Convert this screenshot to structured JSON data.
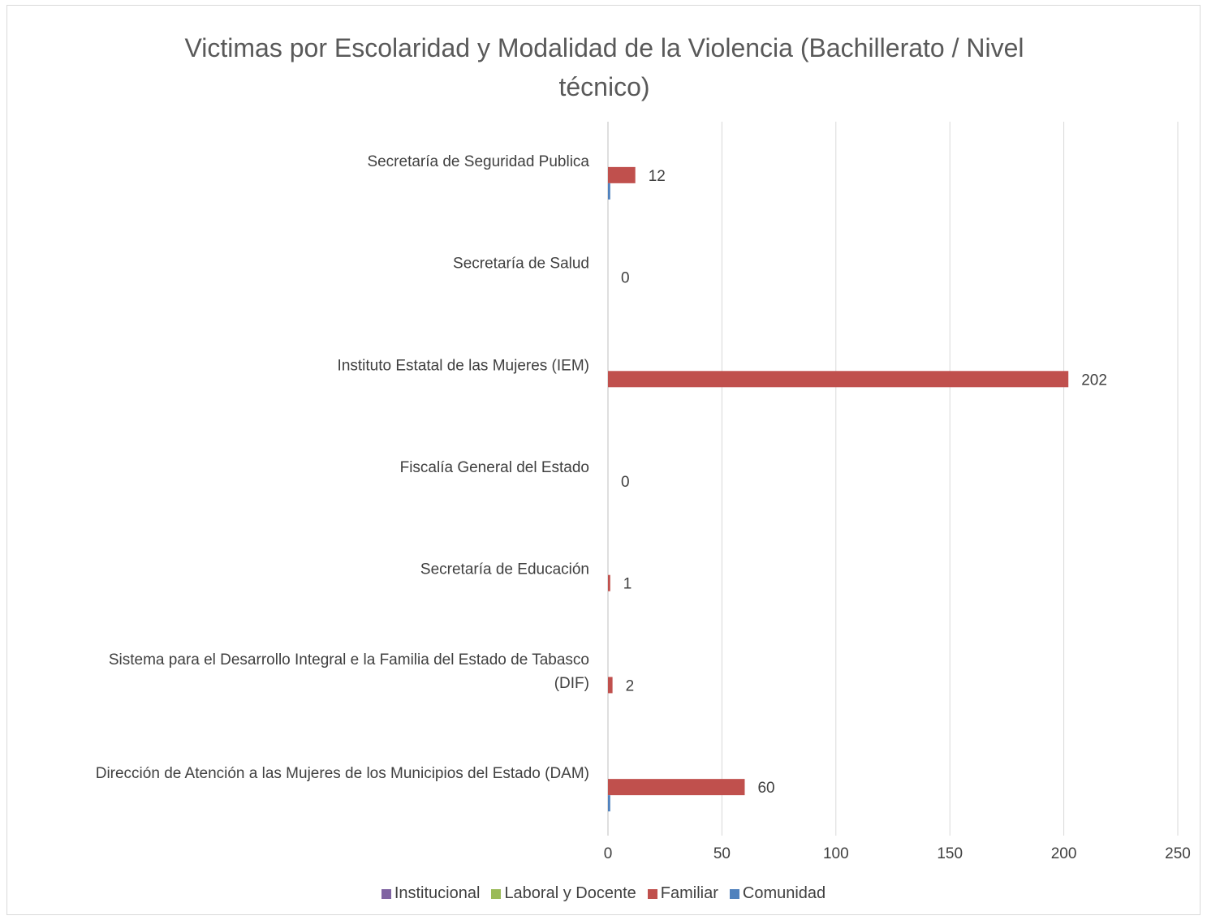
{
  "chart_data": {
    "type": "bar",
    "orientation": "horizontal",
    "title": "Victimas por Escolaridad y Modalidad de la Violencia (Bachillerato / Nivel técnico)",
    "title_lines": [
      "Victimas por Escolaridad y Modalidad de la Violencia (Bachillerato / Nivel",
      "técnico)"
    ],
    "categories": [
      "Secretaría de Seguridad Publica",
      "Secretaría de Salud",
      "Instituto Estatal de las Mujeres (IEM)",
      "Fiscalía General del Estado",
      "Secretaría de Educación",
      "Sistema para el Desarrollo Integral e la Familia del Estado de Tabasco (DIF)",
      "Dirección de Atención a las Mujeres de los Municipios del Estado (DAM)"
    ],
    "category_label_lines": [
      [
        "Secretaría de Seguridad Publica"
      ],
      [
        "Secretaría de Salud"
      ],
      [
        "Instituto Estatal de las Mujeres (IEM)"
      ],
      [
        "Fiscalía General del Estado"
      ],
      [
        "Secretaría de Educación"
      ],
      [
        "Sistema para el Desarrollo Integral e la Familia del Estado de Tabasco",
        "(DIF)"
      ],
      [
        "Dirección de Atención a las Mujeres de los Municipios del Estado (DAM)"
      ]
    ],
    "series": [
      {
        "name": "Institucional",
        "color": "#8064a2",
        "values": [
          0,
          0,
          0,
          0,
          0,
          0,
          0
        ]
      },
      {
        "name": "Laboral y Docente",
        "color": "#9bbb59",
        "values": [
          0,
          0,
          0,
          0,
          0,
          0,
          0
        ]
      },
      {
        "name": "Familiar",
        "color": "#c0504d",
        "values": [
          12,
          0,
          202,
          0,
          1,
          2,
          60
        ]
      },
      {
        "name": "Comunidad",
        "color": "#4f81bd",
        "values": [
          1,
          0,
          0,
          0,
          0,
          0,
          1
        ]
      }
    ],
    "data_labels": [
      "12",
      "0",
      "202",
      "0",
      "1",
      "2",
      "60"
    ],
    "x_ticks": [
      0,
      50,
      100,
      150,
      200,
      250
    ],
    "xlim": [
      0,
      250
    ],
    "grid": true,
    "legend_position": "bottom"
  }
}
